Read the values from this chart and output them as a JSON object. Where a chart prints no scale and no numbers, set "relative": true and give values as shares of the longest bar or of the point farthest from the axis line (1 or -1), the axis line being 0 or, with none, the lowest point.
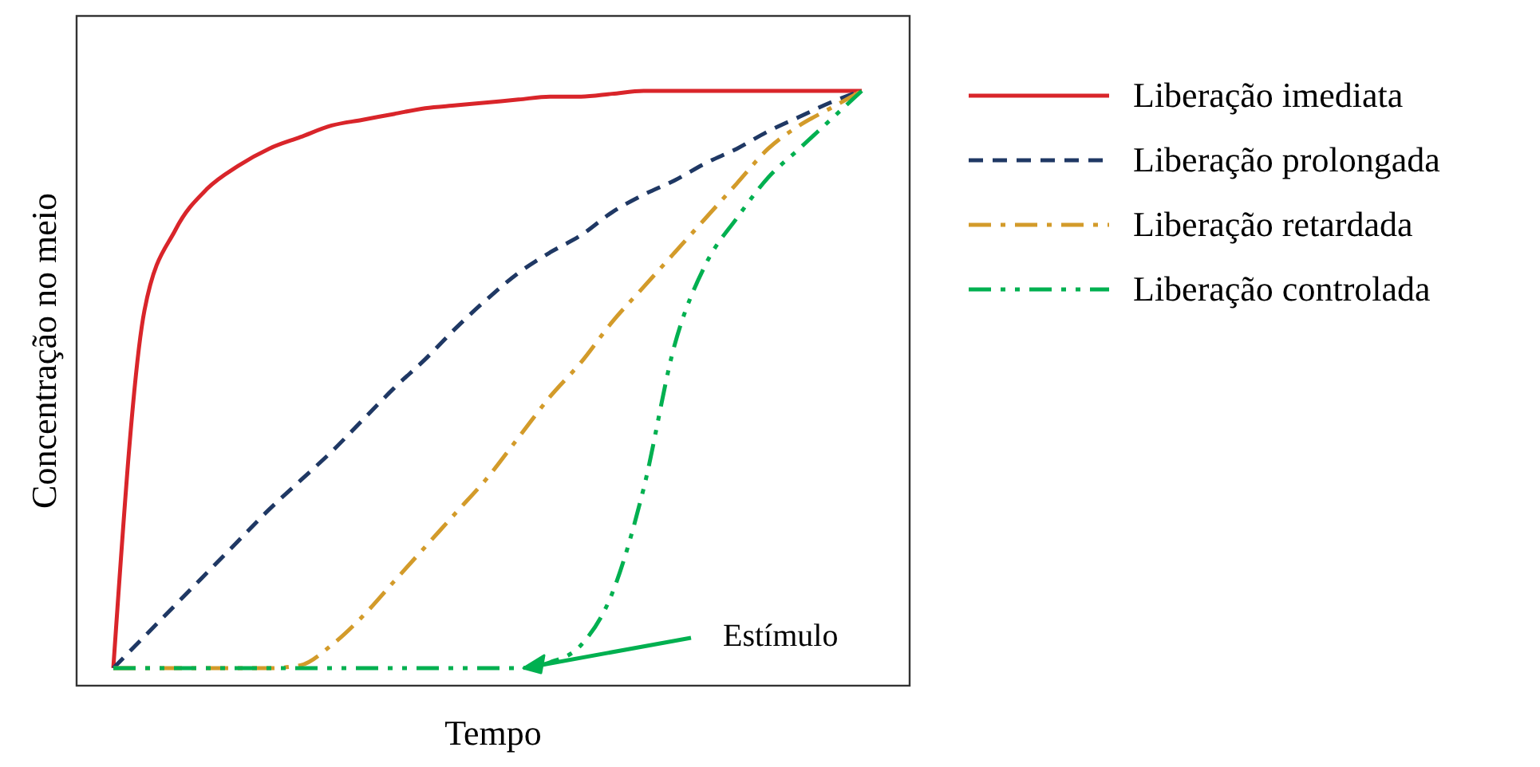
{
  "chart_data": {
    "type": "line",
    "relative": true,
    "xlabel": "Tempo",
    "ylabel": "Concentração no meio",
    "legend": "right",
    "marker": "none",
    "categories": [
      null,
      null,
      null,
      null,
      null,
      null,
      null,
      null,
      null,
      null,
      null,
      null,
      null,
      null,
      null,
      null,
      null,
      null,
      null,
      null,
      null,
      null,
      null,
      null,
      null
    ],
    "series": [
      {
        "name": "Liberação imediata",
        "color": "#d9252a",
        "line_style": "solid",
        "values": [
          0,
          0.62,
          0.76,
          0.83,
          0.87,
          0.9,
          0.92,
          0.94,
          0.95,
          0.96,
          0.97,
          0.975,
          0.98,
          0.985,
          0.99,
          0.99,
          0.995,
          1,
          1,
          1,
          1,
          1,
          1,
          1,
          1
        ]
      },
      {
        "name": "Liberação prolongada",
        "color": "#1f3864",
        "line_style": "dashed",
        "values": [
          0,
          0.055,
          0.11,
          0.165,
          0.22,
          0.275,
          0.325,
          0.375,
          0.43,
          0.485,
          0.535,
          0.59,
          0.64,
          0.685,
          0.72,
          0.75,
          0.79,
          0.82,
          0.845,
          0.875,
          0.9,
          0.93,
          0.955,
          0.98,
          1
        ]
      },
      {
        "name": "Liberação retardada",
        "color": "#d39b2a",
        "line_style": "dashdot",
        "values": [
          0,
          0,
          0,
          0,
          0,
          0,
          0.005,
          0.04,
          0.09,
          0.15,
          0.21,
          0.27,
          0.33,
          0.4,
          0.47,
          0.53,
          0.6,
          0.66,
          0.72,
          0.78,
          0.84,
          0.9,
          0.94,
          0.97,
          1
        ]
      },
      {
        "name": "Liberação controlada",
        "color": "#00b050",
        "line_style": "dashdotdot",
        "values": [
          0,
          0,
          0,
          0,
          0,
          0,
          0,
          0,
          0,
          0,
          0,
          0,
          0,
          0,
          0.01,
          0.04,
          0.13,
          0.31,
          0.56,
          0.7,
          0.78,
          0.85,
          0.9,
          0.95,
          1
        ]
      }
    ],
    "annotations": [
      "Estímulo"
    ]
  }
}
